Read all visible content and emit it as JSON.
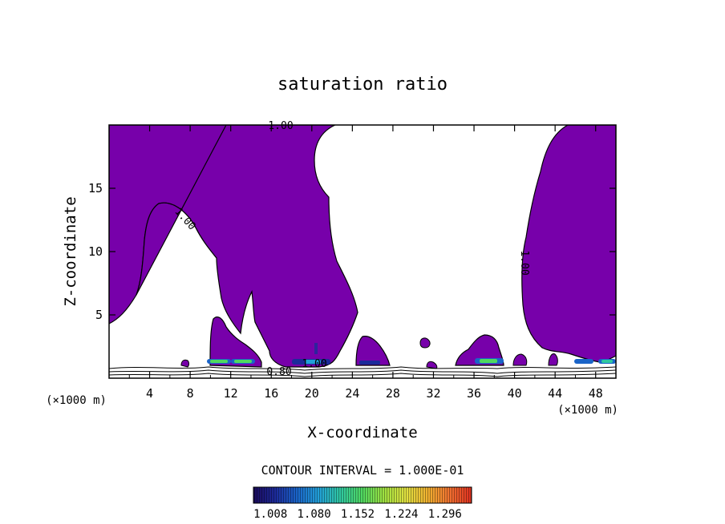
{
  "chart_data": {
    "type": "contour",
    "title": "saturation ratio",
    "xlabel": "X-coordinate",
    "ylabel": "Z-coordinate",
    "x_unit_label": "(×1000 m)",
    "xlim": [
      0,
      50
    ],
    "ylim": [
      0,
      20
    ],
    "x_ticks": [
      4,
      8,
      12,
      16,
      20,
      24,
      28,
      32,
      36,
      40,
      44,
      48
    ],
    "y_ticks": [
      5,
      10,
      15
    ],
    "contour_interval_label": "CONTOUR INTERVAL = 1.000E-01",
    "contour_labels": [
      "1.00",
      "1.00",
      "1.00",
      "1.00",
      "0.80"
    ],
    "colorbar": {
      "tick_labels": [
        "1.008",
        "1.080",
        "1.152",
        "1.224",
        "1.296"
      ],
      "colors": [
        "#1a0a5a",
        "#1c2a9a",
        "#1a64c8",
        "#22a0d8",
        "#30c8a0",
        "#50d860",
        "#a0e040",
        "#e0e040",
        "#f0b030",
        "#f07030",
        "#e03020"
      ]
    },
    "fill_color": "#7700aa",
    "supersaturated_regions": [
      {
        "x": [
          0,
          11
        ],
        "z": [
          4.6,
          20
        ],
        "note": "left cloud"
      },
      {
        "x": [
          12,
          23
        ],
        "z": [
          1,
          20
        ],
        "note": "central cloud"
      },
      {
        "x": [
          41,
          50
        ],
        "z": [
          1,
          20
        ],
        "note": "right cloud"
      },
      {
        "x": [
          24.5,
          28
        ],
        "z": [
          1,
          3.5
        ],
        "note": "low cloud"
      },
      {
        "x": [
          34.5,
          39
        ],
        "z": [
          1,
          3.5
        ],
        "note": "low cloud"
      }
    ]
  }
}
